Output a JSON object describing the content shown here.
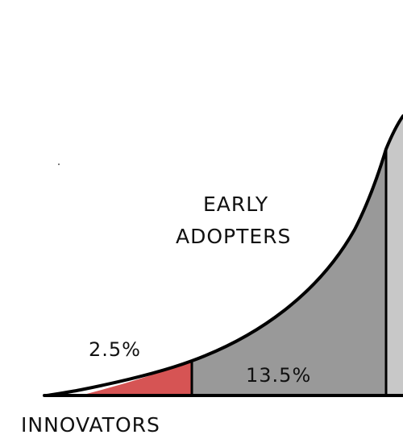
{
  "diagram": {
    "segments": [
      {
        "name": "INNOVATORS",
        "share_text": "2.5%",
        "color": "#d65454"
      },
      {
        "name": "EARLY ADOPTERS",
        "share_text": "13.5%",
        "color": "#999999"
      }
    ],
    "labels": {
      "innovators": "INNOVATORS",
      "innovators_share": "2.5%",
      "early_adopters_line1": "EARLY",
      "early_adopters_line2": "ADOPTERS",
      "early_adopters_share": "13.5%"
    },
    "colors": {
      "innovators_fill": "#d65454",
      "early_adopters_fill": "#999999",
      "next_segment_fill": "#c8c8c8",
      "outline": "#000000"
    }
  }
}
